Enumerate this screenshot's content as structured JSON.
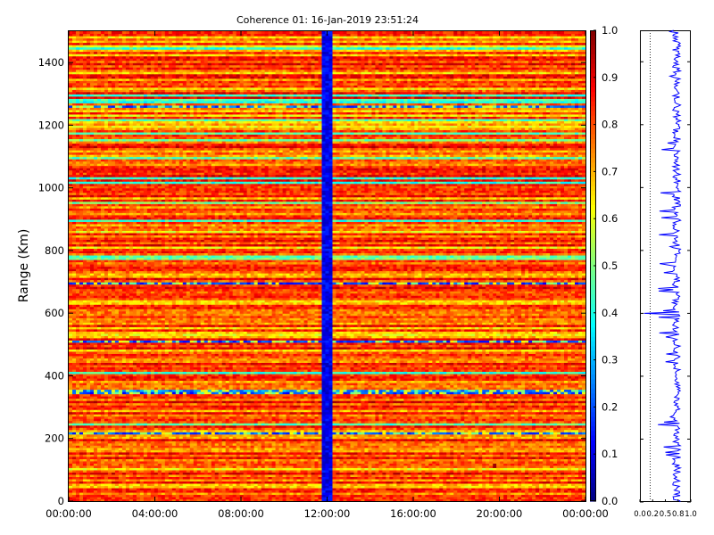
{
  "chart_data": [
    {
      "type": "heatmap",
      "title": "Coherence 01: 16-Jan-2019 23:51:24",
      "xlabel": "",
      "ylabel": "Range (Km)",
      "x_tick_labels": [
        "00:00:00",
        "04:00:00",
        "08:00:00",
        "12:00:00",
        "16:00:00",
        "20:00:00",
        "00:00:00"
      ],
      "x_range_hours": [
        0,
        24
      ],
      "y_ticks": [
        0,
        200,
        400,
        600,
        800,
        1000,
        1200,
        1400
      ],
      "ylim": [
        0,
        1500
      ],
      "colormap": "jet",
      "color_range": [
        0,
        1
      ],
      "low_coherence_columns_hours": [
        11.8,
        12.2
      ],
      "low_coherence_rows_km": [
        215,
        350,
        510,
        695,
        1262
      ],
      "high_coherence_patch": {
        "x_hours": 19.8,
        "y_km": 115
      },
      "grid": false
    },
    {
      "type": "colorbar",
      "ticks": [
        "0.0",
        "0.1",
        "0.2",
        "0.3",
        "0.4",
        "0.5",
        "0.6",
        "0.7",
        "0.8",
        "0.9",
        "1.0"
      ]
    },
    {
      "type": "line",
      "xlabel": "",
      "ylabel": "",
      "x_tick_labels": [
        "0.0",
        "0.2",
        "0.5",
        "0.8",
        "1.0"
      ],
      "xlim": [
        0,
        1
      ],
      "ylim": [
        0,
        1500
      ],
      "reference_line_x": 0.2,
      "series_color": "#0000ff",
      "grid": false
    }
  ]
}
